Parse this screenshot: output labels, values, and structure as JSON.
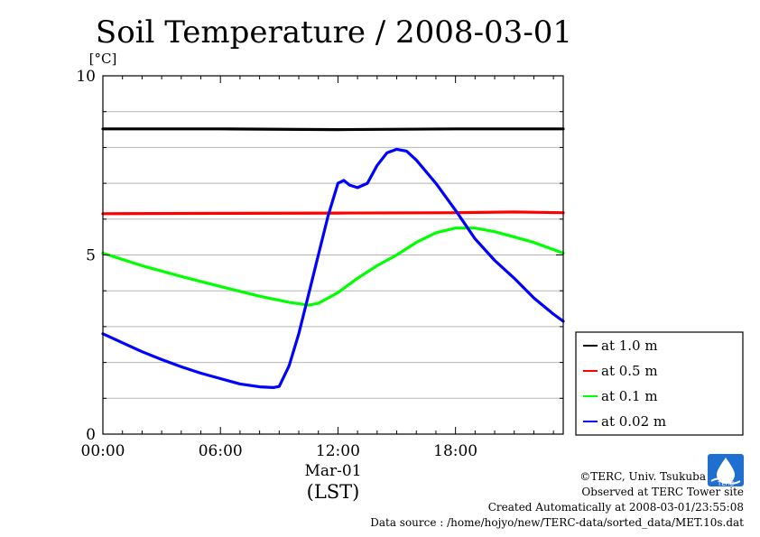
{
  "chart_data": {
    "type": "line",
    "title": "Soil Temperature / 2008-03-01",
    "ylabel": "[°C]",
    "xlabel": "(LST)",
    "date_label": "Mar-01",
    "xlim": [
      0,
      23.5
    ],
    "ylim": [
      0,
      10
    ],
    "x_ticks": [
      {
        "x": 0,
        "label": "00:00"
      },
      {
        "x": 6,
        "label": "06:00"
      },
      {
        "x": 12,
        "label": "12:00"
      },
      {
        "x": 18,
        "label": "18:00"
      }
    ],
    "y_ticks": [
      {
        "y": 0,
        "label": "0"
      },
      {
        "y": 5,
        "label": "5"
      },
      {
        "y": 10,
        "label": "10"
      }
    ],
    "grid": "horizontal",
    "legend_position": "right",
    "series": [
      {
        "name": "at 1.0 m",
        "color": "#000000",
        "points": [
          [
            0,
            8.52
          ],
          [
            6,
            8.52
          ],
          [
            12,
            8.5
          ],
          [
            18,
            8.52
          ],
          [
            23.5,
            8.52
          ]
        ]
      },
      {
        "name": "at 0.5 m",
        "color": "#ff0000",
        "points": [
          [
            0,
            6.15
          ],
          [
            6,
            6.16
          ],
          [
            12,
            6.17
          ],
          [
            18,
            6.18
          ],
          [
            21,
            6.2
          ],
          [
            23.5,
            6.18
          ]
        ]
      },
      {
        "name": "at 0.1 m",
        "color": "#00ff00",
        "points": [
          [
            0,
            5.05
          ],
          [
            2,
            4.7
          ],
          [
            4,
            4.4
          ],
          [
            6,
            4.12
          ],
          [
            8,
            3.85
          ],
          [
            9.5,
            3.68
          ],
          [
            10.5,
            3.6
          ],
          [
            11,
            3.65
          ],
          [
            12,
            3.95
          ],
          [
            13,
            4.35
          ],
          [
            14,
            4.7
          ],
          [
            15,
            5.0
          ],
          [
            16,
            5.35
          ],
          [
            17,
            5.62
          ],
          [
            18,
            5.75
          ],
          [
            19,
            5.75
          ],
          [
            20,
            5.65
          ],
          [
            21,
            5.5
          ],
          [
            22,
            5.35
          ],
          [
            23.5,
            5.05
          ]
        ]
      },
      {
        "name": "at 0.02 m",
        "color": "#0000ff",
        "points": [
          [
            0,
            2.8
          ],
          [
            1,
            2.55
          ],
          [
            2,
            2.3
          ],
          [
            3,
            2.08
          ],
          [
            4,
            1.88
          ],
          [
            5,
            1.7
          ],
          [
            6,
            1.55
          ],
          [
            7,
            1.4
          ],
          [
            8,
            1.32
          ],
          [
            8.7,
            1.3
          ],
          [
            9,
            1.33
          ],
          [
            9.5,
            1.9
          ],
          [
            10,
            2.8
          ],
          [
            10.5,
            3.9
          ],
          [
            11,
            5.0
          ],
          [
            11.5,
            6.1
          ],
          [
            12,
            7.0
          ],
          [
            12.3,
            7.08
          ],
          [
            12.6,
            6.95
          ],
          [
            13,
            6.88
          ],
          [
            13.5,
            7.0
          ],
          [
            14,
            7.5
          ],
          [
            14.5,
            7.85
          ],
          [
            15,
            7.95
          ],
          [
            15.5,
            7.9
          ],
          [
            16,
            7.65
          ],
          [
            17,
            7.0
          ],
          [
            18,
            6.25
          ],
          [
            18.5,
            5.85
          ],
          [
            19,
            5.45
          ],
          [
            20,
            4.85
          ],
          [
            21,
            4.35
          ],
          [
            22,
            3.8
          ],
          [
            23,
            3.35
          ],
          [
            23.5,
            3.15
          ]
        ]
      }
    ]
  },
  "credits": {
    "copyright": "©TERC, Univ. Tsukuba",
    "site": "Observed at TERC Tower site",
    "created": "Created Automatically at 2008-03-01/23:55:08",
    "source": "Data source : /home/hojyo/new/TERC-data/sorted_data/MET.10s.dat"
  },
  "logo": {
    "text": "TERC",
    "color": "#1f6fd1"
  }
}
